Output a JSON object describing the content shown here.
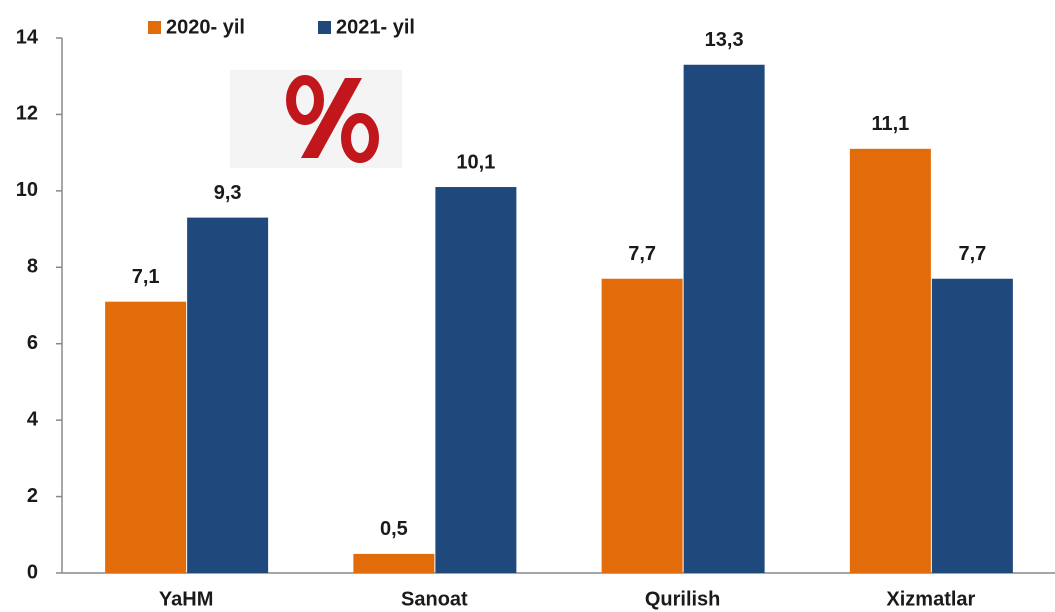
{
  "chart_data": {
    "type": "bar",
    "categories": [
      "YaHM",
      "Sanoat",
      "Qurilish",
      "Xizmatlar"
    ],
    "series": [
      {
        "name": "2020- yil",
        "color": "#e36c0a",
        "values": [
          7.1,
          0.5,
          7.7,
          11.1
        ],
        "value_labels": [
          "7,1",
          "0,5",
          "7,7",
          "11,1"
        ]
      },
      {
        "name": "2021- yil",
        "color": "#1f497d",
        "values": [
          9.3,
          10.1,
          13.3,
          7.7
        ],
        "value_labels": [
          "9,3",
          "10,1",
          "13,3",
          "7,7"
        ]
      }
    ],
    "ylim": [
      0,
      14
    ],
    "yticks": [
      0,
      2,
      4,
      6,
      8,
      10,
      12,
      14
    ],
    "grid": false,
    "legend": "top"
  }
}
